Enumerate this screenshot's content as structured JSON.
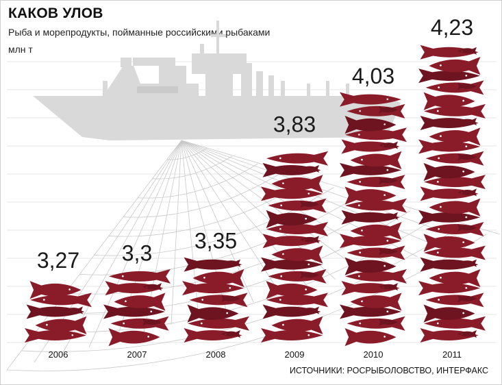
{
  "header": {
    "title": "КАКОВ УЛОВ",
    "subtitle": "Рыба и морепродукты, пойманные российскими рыбаками",
    "unit": "млн т"
  },
  "footer": {
    "source": "ИСТОЧНИКИ: РОСРЫБОЛОВСТВО, ИНТЕРФАКС"
  },
  "colors": {
    "fish": "#8a1c2a",
    "fish_dark": "#6e1420",
    "ship": "#d9d9d9",
    "grid": "#e6e6e6",
    "net": "#c8c8c8"
  },
  "icons": [
    "fish-icon",
    "squid-icon",
    "nautilus-icon",
    "ship-silhouette",
    "fishing-net"
  ],
  "chart_data": {
    "type": "bar",
    "title": "КАКОВ УЛОВ",
    "subtitle": "Рыба и морепродукты, пойманные российскими рыбаками",
    "ylabel": "млн т",
    "categories": [
      "2006",
      "2007",
      "2008",
      "2009",
      "2010",
      "2011"
    ],
    "values": [
      3.27,
      3.3,
      3.35,
      3.83,
      4.03,
      4.23
    ],
    "value_labels": [
      "3,27",
      "3,3",
      "3,35",
      "3,83",
      "4,03",
      "4,23"
    ],
    "grid": true,
    "legend": "none"
  }
}
